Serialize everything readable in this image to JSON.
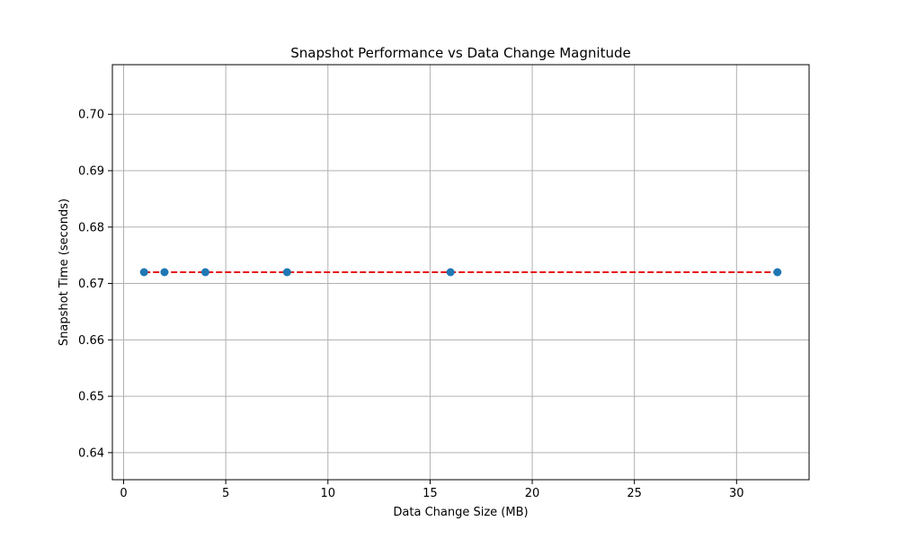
{
  "chart_data": {
    "type": "scatter",
    "title": "Snapshot Performance vs Data Change Magnitude",
    "xlabel": "Data Change Size (MB)",
    "ylabel": "Snapshot Time (seconds)",
    "xlim": [
      -0.55,
      33.55
    ],
    "ylim": [
      0.6352,
      0.7088
    ],
    "x_ticks": [
      0,
      5,
      10,
      15,
      20,
      25,
      30
    ],
    "y_ticks": [
      0.64,
      0.65,
      0.66,
      0.67,
      0.68,
      0.69,
      0.7
    ],
    "x_tick_labels": [
      "0",
      "5",
      "10",
      "15",
      "20",
      "25",
      "30"
    ],
    "y_tick_labels": [
      "0.64",
      "0.65",
      "0.66",
      "0.67",
      "0.68",
      "0.69",
      "0.70"
    ],
    "grid": true,
    "series": [
      {
        "kind": "scatter",
        "x": [
          1,
          2,
          4,
          8,
          16,
          32
        ],
        "y": [
          0.672,
          0.672,
          0.672,
          0.672,
          0.672,
          0.672
        ],
        "color": "#1f77b4"
      },
      {
        "kind": "line",
        "style": "dashed",
        "x": [
          1,
          32
        ],
        "y": [
          0.672,
          0.672
        ],
        "color": "#e41a1c"
      }
    ]
  }
}
